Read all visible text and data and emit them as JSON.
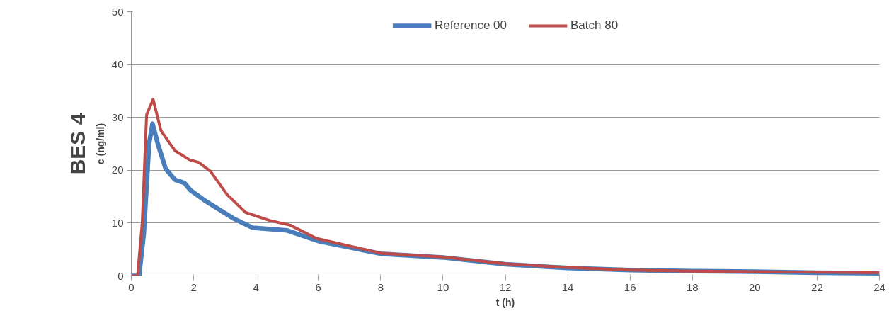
{
  "chart_data": {
    "type": "line",
    "title": "BES 4",
    "xlabel": "t (h)",
    "ylabel": "c (ng/ml)",
    "xlim": [
      0,
      24
    ],
    "xticks": [
      0,
      2,
      4,
      6,
      8,
      10,
      12,
      14,
      16,
      18,
      20,
      22,
      24
    ],
    "ylim": [
      0,
      50
    ],
    "yticks": [
      0,
      10,
      20,
      30,
      40,
      50
    ],
    "grid": "y",
    "legend": "top",
    "marker": "none",
    "line_style": "solid",
    "series": [
      {
        "name": "Reference 00",
        "color": "#4a7ebb",
        "x": [
          0,
          0.25,
          0.4,
          0.57,
          0.68,
          0.85,
          1.1,
          1.4,
          1.7,
          1.9,
          2.4,
          3.3,
          3.9,
          5.0,
          6.0,
          8,
          10,
          12,
          14,
          16,
          18,
          20,
          22,
          24
        ],
        "values": [
          0,
          0,
          8,
          25,
          28.8,
          25,
          20.3,
          18.2,
          17.6,
          16.2,
          14.1,
          10.8,
          9.1,
          8.6,
          6.6,
          4.2,
          3.5,
          2.2,
          1.5,
          1.1,
          0.9,
          0.8,
          0.6,
          0.5
        ]
      },
      {
        "name": "Batch 80",
        "color": "#be4b48",
        "x": [
          0,
          0.2,
          0.35,
          0.49,
          0.7,
          0.95,
          1.4,
          1.86,
          2.16,
          2.54,
          3.07,
          3.67,
          4.43,
          5.1,
          5.94,
          8,
          10,
          12,
          14,
          16,
          18,
          20,
          22,
          24
        ],
        "values": [
          0,
          0,
          10,
          30.5,
          33.4,
          27.5,
          23.7,
          22,
          21.5,
          19.8,
          15.4,
          12,
          10.5,
          9.6,
          7.1,
          4.3,
          3.6,
          2.3,
          1.6,
          1.1,
          0.9,
          0.8,
          0.7,
          0.6
        ]
      }
    ]
  }
}
